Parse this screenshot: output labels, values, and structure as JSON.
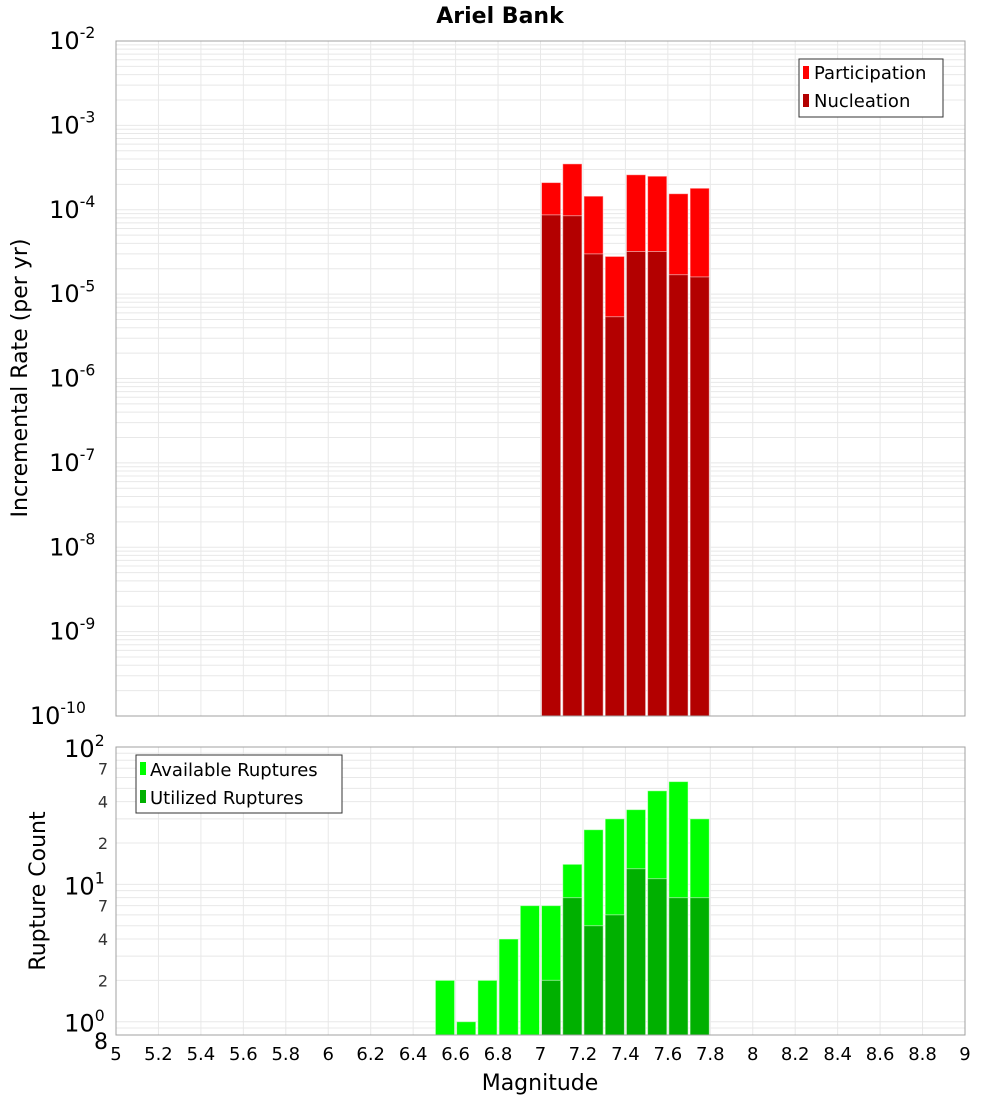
{
  "chart_data": [
    {
      "type": "bar",
      "title": "Ariel Bank",
      "ylabel": "Incremental Rate (per yr)",
      "xlabel": "Magnitude",
      "yscale": "log",
      "ylim": [
        1e-10,
        0.01
      ],
      "xlim": [
        5,
        9
      ],
      "bin_centers": [
        7.05,
        7.15,
        7.25,
        7.35,
        7.45,
        7.55,
        7.65,
        7.75
      ],
      "bin_width": 0.1,
      "series": [
        {
          "name": "Participation",
          "color": "#ff0000",
          "values": [
            0.00021,
            0.00035,
            0.000145,
            2.8e-05,
            0.00026,
            0.00025,
            0.000155,
            0.00018
          ]
        },
        {
          "name": "Nucleation",
          "color": "#b30000",
          "values": [
            8.7e-05,
            8.5e-05,
            3e-05,
            5.4e-06,
            3.2e-05,
            3.2e-05,
            1.7e-05,
            1.6e-05
          ]
        }
      ],
      "legend": "top-right",
      "grid": true,
      "yticks": [
        {
          "base": "10",
          "exp": "-10"
        },
        {
          "base": "10",
          "exp": "-9"
        },
        {
          "base": "10",
          "exp": "-8"
        },
        {
          "base": "10",
          "exp": "-7"
        },
        {
          "base": "10",
          "exp": "-6"
        },
        {
          "base": "10",
          "exp": "-5"
        },
        {
          "base": "10",
          "exp": "-4"
        },
        {
          "base": "10",
          "exp": "-3"
        },
        {
          "base": "10",
          "exp": "-2"
        }
      ]
    },
    {
      "type": "bar",
      "ylabel": "Rupture Count",
      "xlabel": "Magnitude",
      "yscale": "log",
      "ylim": [
        0.8,
        100
      ],
      "xlim": [
        5,
        9
      ],
      "bin_centers": [
        6.55,
        6.65,
        6.75,
        6.85,
        6.95,
        7.05,
        7.15,
        7.25,
        7.35,
        7.45,
        7.55,
        7.65,
        7.75
      ],
      "bin_width": 0.1,
      "series": [
        {
          "name": "Available Ruptures",
          "color": "#00ff00",
          "values": [
            2,
            1,
            2,
            4,
            7,
            7,
            14,
            25,
            30,
            35,
            48,
            56,
            30
          ]
        },
        {
          "name": "Utilized Ruptures",
          "color": "#00b000",
          "values": [
            0,
            0,
            0,
            0,
            0,
            2,
            8,
            5,
            6,
            13,
            11,
            8,
            8
          ]
        }
      ],
      "legend": "top-left",
      "grid": true,
      "major_yticks": [
        {
          "base": "10",
          "exp": "0"
        },
        {
          "base": "10",
          "exp": "1"
        },
        {
          "base": "10",
          "exp": "2"
        }
      ],
      "minor_yticks": [
        {
          "v": 0.8,
          "label": "8"
        },
        {
          "v": 2,
          "label": "2"
        },
        {
          "v": 4,
          "label": "4"
        },
        {
          "v": 7,
          "label": "7"
        },
        {
          "v": 20,
          "label": "2"
        },
        {
          "v": 40,
          "label": "4"
        },
        {
          "v": 70,
          "label": "7"
        }
      ],
      "xticks": [
        "5",
        "5.2",
        "5.4",
        "5.6",
        "5.8",
        "6",
        "6.2",
        "6.4",
        "6.6",
        "6.8",
        "7",
        "7.2",
        "7.4",
        "7.6",
        "7.8",
        "8",
        "8.2",
        "8.4",
        "8.6",
        "8.8",
        "9"
      ]
    }
  ]
}
